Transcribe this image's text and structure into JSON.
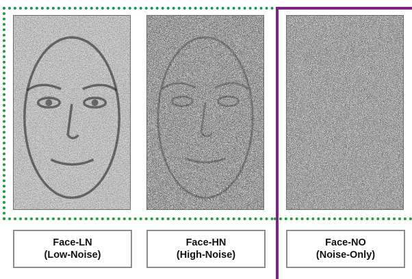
{
  "figure": {
    "conditions": [
      {
        "id": "ln",
        "name": "Face-LN",
        "sub": "(Low-Noise)"
      },
      {
        "id": "hn",
        "name": "Face-HN",
        "sub": "(High-Noise)"
      },
      {
        "id": "no",
        "name": "Face-NO",
        "sub": "(Noise-Only)"
      }
    ],
    "colors": {
      "face_group_outline": "#1f9a45",
      "noise_divider": "#7d2586",
      "label_border": "#8c8c8c"
    }
  }
}
